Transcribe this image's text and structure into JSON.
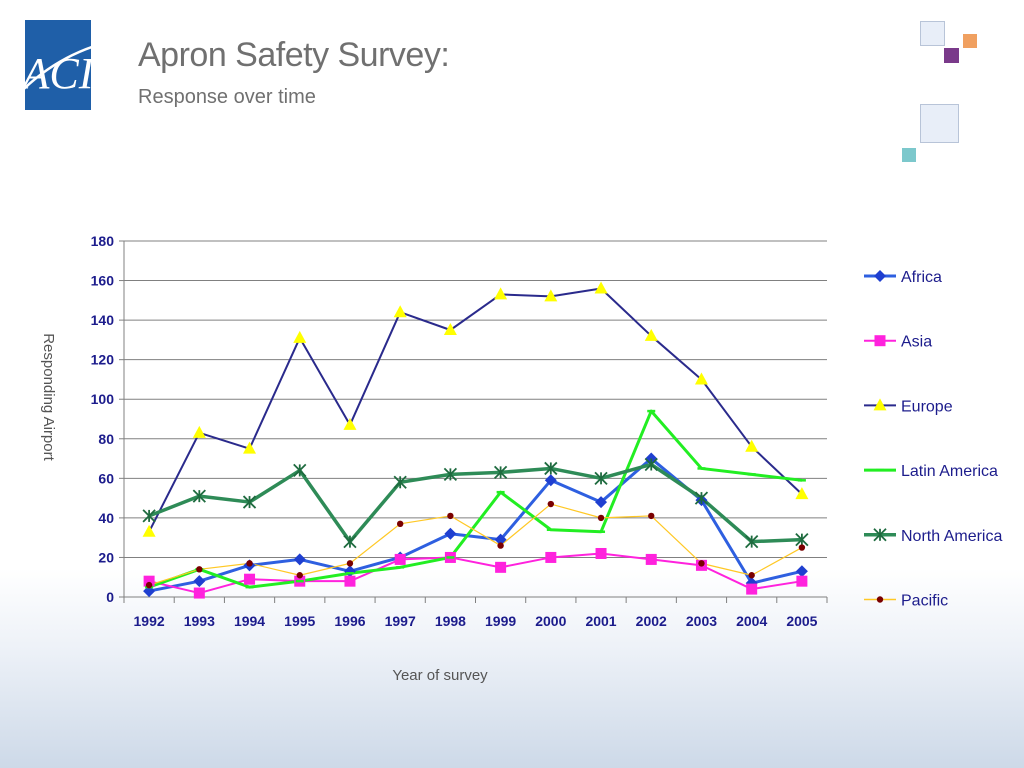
{
  "slide": {
    "title": "Apron Safety Survey:",
    "subtitle": "Response over time",
    "logo_text": "ACI"
  },
  "colors": {
    "title_text": "#707070",
    "tick_text": "#1c1c8c",
    "grid": "#808080",
    "logo_blue": "#1f5fa8"
  },
  "icons": [
    "aci-logo",
    "decorative-squares"
  ],
  "chart_data": {
    "type": "line",
    "title": "",
    "xlabel": "Year of survey",
    "ylabel": "Responding Airport",
    "ylim": [
      0,
      180
    ],
    "yticks": [
      0,
      20,
      40,
      60,
      80,
      100,
      120,
      140,
      160,
      180
    ],
    "grid": true,
    "legend_position": "right",
    "categories": [
      "1992",
      "1993",
      "1994",
      "1995",
      "1996",
      "1997",
      "1998",
      "1999",
      "2000",
      "2001",
      "2002",
      "2003",
      "2004",
      "2005"
    ],
    "series": [
      {
        "name": "Africa",
        "color": "#2e5fe0",
        "width": 3,
        "marker": "diamond",
        "marker_color": "#1f3fd0",
        "values": [
          3,
          8,
          16,
          19,
          13,
          20,
          32,
          29,
          59,
          48,
          70,
          49,
          7,
          13
        ]
      },
      {
        "name": "Asia",
        "color": "#ff22dd",
        "width": 2,
        "marker": "square",
        "marker_color": "#ff22dd",
        "values": [
          8,
          2,
          9,
          8,
          8,
          19,
          20,
          15,
          20,
          22,
          19,
          16,
          4,
          8
        ]
      },
      {
        "name": "Europe",
        "color": "#2a2a8c",
        "width": 2,
        "marker": "triangle",
        "marker_color": "#ffff00",
        "values": [
          33,
          83,
          75,
          131,
          87,
          144,
          135,
          153,
          152,
          156,
          132,
          110,
          76,
          52
        ]
      },
      {
        "name": "Latin America",
        "color": "#22ee22",
        "width": 3,
        "marker": "dash",
        "marker_color": "#22ee22",
        "values": [
          5,
          14,
          5,
          8,
          12,
          15,
          20,
          53,
          34,
          33,
          94,
          65,
          62,
          59
        ]
      },
      {
        "name": "North America",
        "color": "#2e8b57",
        "width": 3.5,
        "marker": "asterisk",
        "marker_color": "#1e6b3f",
        "values": [
          41,
          51,
          48,
          64,
          28,
          58,
          62,
          63,
          65,
          60,
          67,
          50,
          28,
          29
        ]
      },
      {
        "name": "Pacific",
        "color": "#ffc825",
        "width": 1.2,
        "marker": "dot",
        "marker_color": "#7a0000",
        "values": [
          6,
          14,
          17,
          11,
          17,
          37,
          41,
          26,
          47,
          40,
          41,
          17,
          11,
          25
        ]
      }
    ]
  }
}
